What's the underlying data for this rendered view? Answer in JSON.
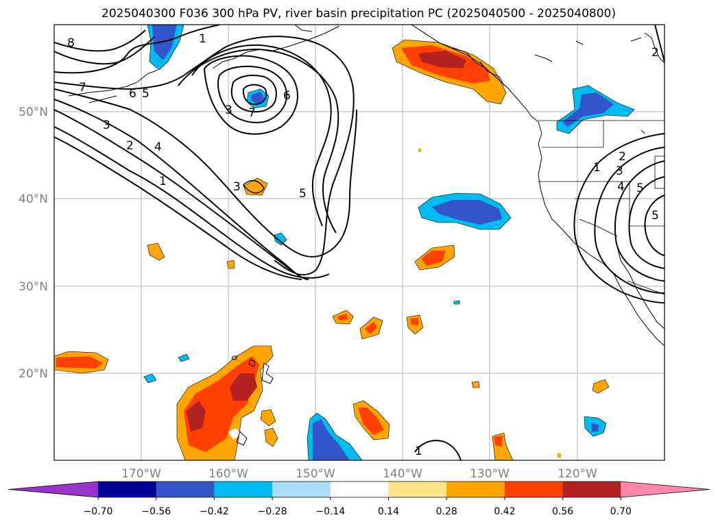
{
  "title": "2025040300 F036 300 hPa PV, river basin precipitation PC (2025040500 - 2025040800)",
  "map": {
    "projection": "plate-carree",
    "lon_range": [
      -180,
      -110
    ],
    "lat_range": [
      10,
      60
    ],
    "gridlines": true,
    "lat_ticks": [
      "20°N",
      "30°N",
      "40°N",
      "50°N"
    ],
    "lon_ticks": [
      "170°W",
      "160°W",
      "150°W",
      "140°W",
      "130°W",
      "120°W"
    ],
    "coastlines": true,
    "borders": true,
    "variables": [
      "300 hPa PV (black contours)",
      "river basin precipitation PC (filled)"
    ]
  },
  "contour_labels": [
    "8",
    "1",
    "7",
    "6",
    "5",
    "3",
    "2",
    "4",
    "1",
    "6",
    "7",
    "3",
    "3",
    "5",
    "1",
    "1",
    "2",
    "3",
    "4",
    "5",
    "5",
    "2"
  ],
  "colorbar": {
    "ticks": [
      "−0.70",
      "−0.56",
      "−0.42",
      "−0.28",
      "−0.14",
      "0.14",
      "0.28",
      "0.42",
      "0.56",
      "0.70"
    ],
    "colors": [
      "#9933cc",
      "#000099",
      "#3355cc",
      "#00bbee",
      "#aaddf7",
      "#ffffff",
      "#fde68a",
      "#ffa500",
      "#ff4000",
      "#b22222",
      "#ff88aa"
    ],
    "extend": "both"
  }
}
